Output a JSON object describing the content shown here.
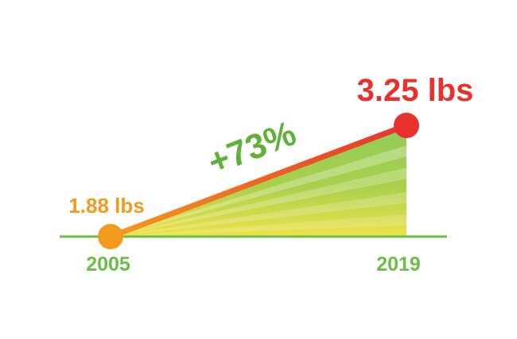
{
  "chart_data": {
    "type": "line",
    "x": [
      2005,
      2019
    ],
    "x_labels": [
      "2005",
      "2019"
    ],
    "values": [
      1.88,
      3.25
    ],
    "value_labels": [
      "1.88 lbs",
      "3.25 lbs"
    ],
    "annotation": "+73%",
    "colors": {
      "start": "#f39a1e",
      "end": "#e8312a",
      "baseline": "#6cbd45",
      "year_text": "#6cbd45",
      "annotation": "#5fb13a",
      "fill_top": "#7cc24a",
      "fill_bottom": "#f2e14a"
    }
  }
}
